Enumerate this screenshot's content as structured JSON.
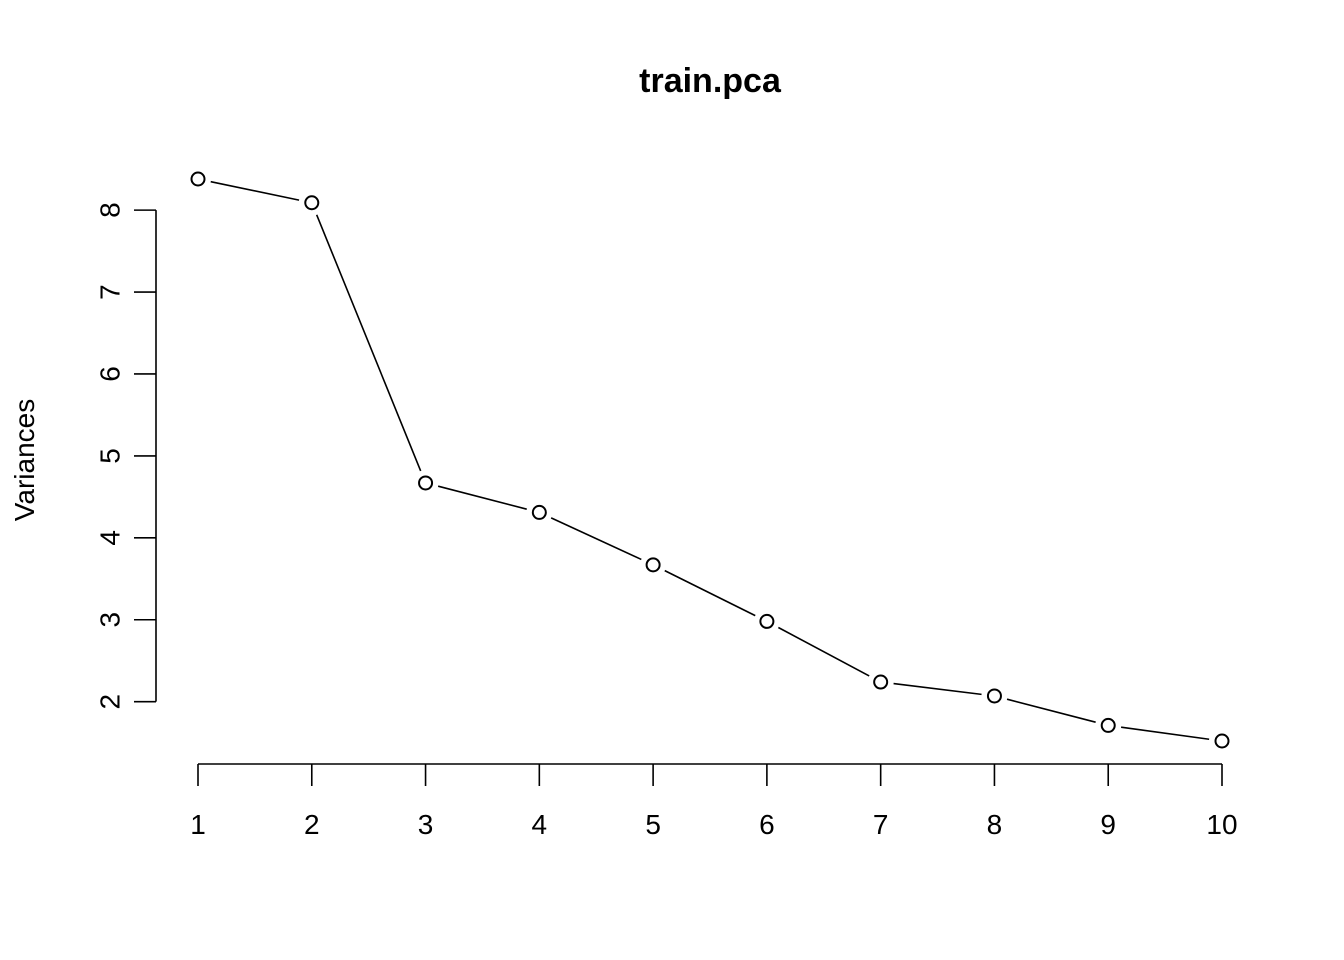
{
  "chart_data": {
    "type": "line",
    "title": "train.pca",
    "xlabel": "",
    "ylabel": "Variances",
    "x": [
      1,
      2,
      3,
      4,
      5,
      6,
      7,
      8,
      9,
      10
    ],
    "series": [
      {
        "values": [
          8.38,
          8.09,
          4.67,
          4.31,
          3.67,
          2.98,
          2.24,
          2.07,
          1.71,
          1.52
        ]
      }
    ],
    "x_ticks": [
      "1",
      "2",
      "3",
      "4",
      "5",
      "6",
      "7",
      "8",
      "9",
      "10"
    ],
    "y_ticks": [
      "2",
      "3",
      "4",
      "5",
      "6",
      "7",
      "8"
    ],
    "xlim": [
      1,
      10
    ],
    "ylim": [
      1.52,
      8.38
    ],
    "grid": false,
    "legend": "none",
    "colors": {
      "line": "#000000",
      "point_fill": "#ffffff",
      "background": "#ffffff"
    }
  }
}
